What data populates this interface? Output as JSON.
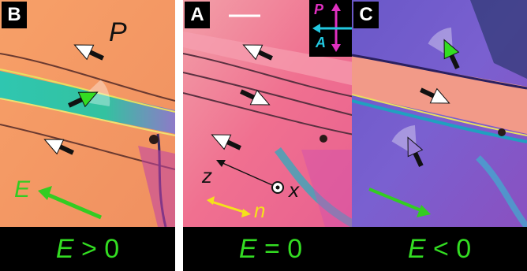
{
  "panels": [
    {
      "tag": "B",
      "caption_var": "E",
      "caption_rel": " > 0"
    },
    {
      "tag": "A",
      "caption_var": "E",
      "caption_rel": " = 0"
    },
    {
      "tag": "C",
      "caption_var": "E",
      "caption_rel": " < 0"
    }
  ],
  "labels": {
    "polarization": "P",
    "field": "E",
    "z_axis": "z",
    "x_axis": "x",
    "director": "n",
    "polarizer": "P",
    "analyzer": "A"
  },
  "colors": {
    "field_arrow": "#33cc22",
    "director_arrow": "#f5e21a",
    "polarizer": "#e030c0",
    "analyzer": "#22c8e0",
    "caption_text": "#33dd22"
  }
}
